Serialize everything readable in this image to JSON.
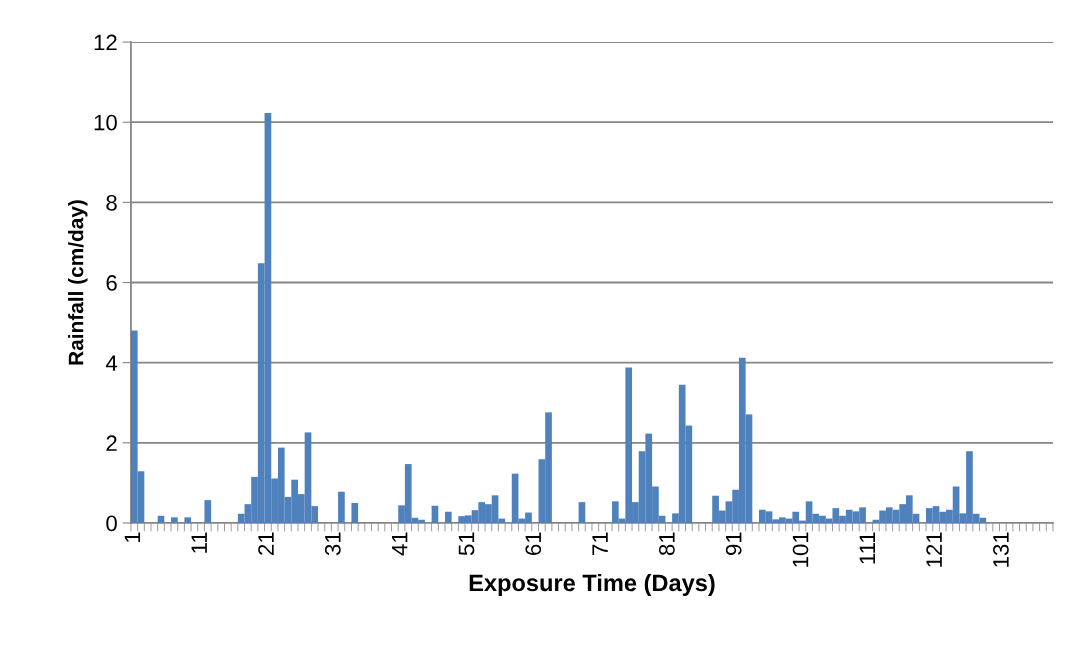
{
  "chart_data": {
    "type": "bar",
    "xlabel": "Exposure Time (Days)",
    "ylabel": "Rainfall (cm/day)",
    "categories": [
      "1",
      null,
      null,
      null,
      null,
      null,
      null,
      null,
      null,
      null,
      "11",
      null,
      null,
      null,
      null,
      null,
      null,
      null,
      null,
      null,
      "21",
      null,
      null,
      null,
      null,
      null,
      null,
      null,
      null,
      null,
      "31",
      null,
      null,
      null,
      null,
      null,
      null,
      null,
      null,
      null,
      "41",
      null,
      null,
      null,
      null,
      null,
      null,
      null,
      null,
      null,
      "51",
      null,
      null,
      null,
      null,
      null,
      null,
      null,
      null,
      null,
      "61",
      null,
      null,
      null,
      null,
      null,
      null,
      null,
      null,
      null,
      "71",
      null,
      null,
      null,
      null,
      null,
      null,
      null,
      null,
      null,
      "81",
      null,
      null,
      null,
      null,
      null,
      null,
      null,
      null,
      null,
      "91",
      null,
      null,
      null,
      null,
      null,
      null,
      null,
      null,
      null,
      "101",
      null,
      null,
      null,
      null,
      null,
      null,
      null,
      null,
      null,
      "111",
      null,
      null,
      null,
      null,
      null,
      null,
      null,
      null,
      null,
      "121",
      null,
      null,
      null,
      null,
      null,
      null,
      null,
      null,
      null,
      "131",
      null,
      null,
      null,
      null,
      null,
      null,
      null
    ],
    "series": [
      {
        "color": "#4f81bd",
        "values": [
          4.8,
          1.29,
          0,
          0,
          0.18,
          0,
          0.14,
          0,
          0.14,
          0,
          0,
          0.57,
          0,
          0,
          0,
          0,
          0.23,
          0.47,
          1.15,
          6.48,
          10.23,
          1.11,
          1.88,
          0.65,
          1.08,
          0.72,
          2.26,
          0.42,
          0,
          0,
          0,
          0.78,
          0,
          0.5,
          0,
          0,
          0,
          0,
          0,
          0,
          0.44,
          1.47,
          0.13,
          0.08,
          0,
          0.43,
          0,
          0.28,
          null,
          0.17,
          0.19,
          0.32,
          0.52,
          0.47,
          0.69,
          0.11,
          0,
          1.23,
          0.11,
          0.26,
          0,
          1.59,
          2.76,
          null,
          0,
          0,
          0,
          0.52,
          0,
          0,
          0,
          0,
          0.54,
          0.11,
          3.88,
          0.52,
          1.79,
          2.23,
          0.91,
          0.18,
          null,
          0.24,
          3.45,
          2.43,
          null,
          0,
          0,
          0.68,
          0.31,
          0.54,
          0.83,
          4.12,
          2.71,
          0,
          0.33,
          0.29,
          0.09,
          0.14,
          0.11,
          0.28,
          0.06,
          0.54,
          0.23,
          0.18,
          0.11,
          0.37,
          0.18,
          0.33,
          0.29,
          0.39,
          0,
          0.08,
          0.31,
          0.39,
          0.33,
          0.47,
          0.69,
          0.23,
          0,
          0.37,
          0.42,
          0.28,
          0.33,
          0.91,
          0.24,
          1.79,
          0.23,
          0.13,
          0,
          0,
          0,
          0,
          0,
          0,
          0,
          0,
          0,
          0
        ]
      }
    ],
    "ylim": [
      0,
      12
    ],
    "yticks": [
      0,
      2,
      4,
      6,
      8,
      10,
      12
    ],
    "grid": "y"
  }
}
